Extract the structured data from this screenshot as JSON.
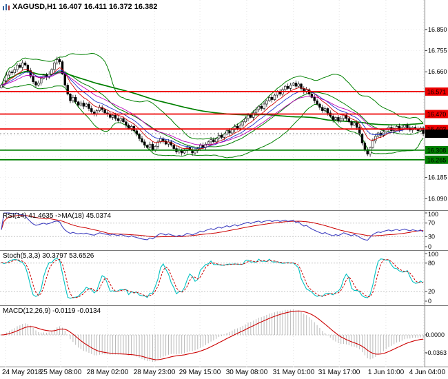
{
  "header": {
    "title": "XAGUSD,H1 16.407 16.411 16.372 16.382",
    "symbol": "XAGUSD",
    "timeframe": "H1",
    "open": 16.407,
    "high": 16.411,
    "low": 16.372,
    "close": 16.382
  },
  "chart_data": {
    "type": "candlestick",
    "title": "XAGUSD,H1",
    "x_labels": [
      {
        "text": "24 May 2018",
        "f": 0.013
      },
      {
        "text": "25 May 08:00",
        "f": 0.143
      },
      {
        "text": "28 May 02:00",
        "f": 0.253
      },
      {
        "text": "28 May 23:00",
        "f": 0.364
      },
      {
        "text": "29 May 15:00",
        "f": 0.471
      },
      {
        "text": "30 May 08:00",
        "f": 0.581
      },
      {
        "text": "31 May 01:00",
        "f": 0.691
      },
      {
        "text": "31 May 17:00",
        "f": 0.799
      },
      {
        "text": "1 Jun 10:00",
        "f": 0.909
      },
      {
        "text": "4 Jun 04:00",
        "f": 1.0
      }
    ],
    "y_axis": {
      "min": 16.06,
      "max": 16.97,
      "grid_values": [
        16.85,
        16.755,
        16.66,
        16.565,
        16.47,
        16.375,
        16.28,
        16.185,
        16.09
      ],
      "labels": [
        {
          "text": "16.850",
          "value": 16.85
        },
        {
          "text": "16.755",
          "value": 16.755
        },
        {
          "text": "16.660",
          "value": 16.66
        },
        {
          "text": "16.185",
          "value": 16.185
        },
        {
          "text": "16.090",
          "value": 16.09
        }
      ]
    },
    "closes": [
      16.6,
      16.62,
      16.645,
      16.66,
      16.655,
      16.67,
      16.69,
      16.68,
      16.7,
      16.69,
      16.665,
      16.64,
      16.615,
      16.6,
      16.61,
      16.63,
      16.645,
      16.635,
      16.65,
      16.67,
      16.7,
      16.715,
      16.705,
      16.65,
      16.6,
      16.56,
      16.53,
      16.545,
      16.525,
      16.51,
      16.52,
      16.505,
      16.515,
      16.495,
      16.48,
      16.47,
      16.485,
      16.5,
      16.49,
      16.475,
      16.47,
      16.455,
      16.465,
      16.45,
      16.44,
      16.45,
      16.435,
      16.42,
      16.405,
      16.415,
      16.395,
      16.38,
      16.36,
      16.345,
      16.33,
      16.32,
      16.335,
      16.31,
      16.325,
      16.345,
      16.36,
      16.35,
      16.335,
      16.345,
      16.33,
      16.315,
      16.3,
      16.31,
      16.295,
      16.305,
      16.32,
      16.31,
      16.295,
      16.305,
      16.315,
      16.33,
      16.32,
      16.335,
      16.345,
      16.355,
      16.345,
      16.36,
      16.375,
      16.365,
      16.38,
      16.395,
      16.385,
      16.4,
      16.415,
      16.405,
      16.42,
      16.435,
      16.45,
      16.465,
      16.455,
      16.475,
      16.49,
      16.505,
      16.495,
      16.515,
      16.53,
      16.545,
      16.535,
      16.555,
      16.57,
      16.56,
      16.58,
      16.595,
      16.585,
      16.6,
      16.61,
      16.595,
      16.605,
      16.585,
      16.57,
      16.58,
      16.56,
      16.545,
      16.53,
      16.515,
      16.5,
      16.485,
      16.495,
      16.475,
      16.46,
      16.445,
      16.455,
      16.44,
      16.45,
      16.465,
      16.45,
      16.435,
      16.42,
      16.43,
      16.41,
      16.38,
      16.34,
      16.31,
      16.29,
      16.32,
      16.35,
      16.37,
      16.385,
      16.375,
      16.39,
      16.4,
      16.41,
      16.395,
      16.405,
      16.415,
      16.4,
      16.41,
      16.42,
      16.408,
      16.398,
      16.41,
      16.402,
      16.395,
      16.407,
      16.382
    ],
    "levels": [
      {
        "label": "16.571",
        "value": 16.571,
        "color": "#EE0000"
      },
      {
        "label": "16.470",
        "value": 16.47,
        "color": "#EE0000"
      },
      {
        "label": "16.403",
        "value": 16.403,
        "color": "#EE0000"
      },
      {
        "label": "16.308",
        "value": 16.308,
        "color": "#008000"
      },
      {
        "label": "16.265",
        "value": 16.265,
        "color": "#008000"
      }
    ],
    "current_price": {
      "label": "16.382",
      "value": 16.382,
      "color": "#000000"
    },
    "overlays": {
      "bollinger": {
        "period": 20,
        "deviation": 2,
        "color": "#008000"
      },
      "slow_ma": {
        "period": 100,
        "color": "#008000"
      },
      "fast_mas": [
        {
          "period": 8,
          "color": "#CC0000"
        },
        {
          "period": 13,
          "color": "#2233CC"
        },
        {
          "period": 21,
          "color": "#BB00BB"
        }
      ]
    },
    "indicators": {
      "rsi": {
        "label": "RSI(14) 41.4635 ->MA(18) 45.0374",
        "period": 14,
        "ma_period": 18,
        "value": 41.4635,
        "ma_value": 45.0374,
        "axis_labels": [
          100,
          70,
          30,
          0
        ],
        "levels": [
          70,
          30
        ],
        "color": "#4040C0",
        "ma_color": "#CC0000"
      },
      "stoch": {
        "label": "Stoch(5,3,3) 30.3797 53.6526",
        "value": 30.3797,
        "signal": 53.6526,
        "axis_labels": [
          100,
          80,
          20,
          0
        ],
        "levels": [
          80,
          20
        ],
        "color": "#00C2C2",
        "signal_color": "#CC0000"
      },
      "macd": {
        "label": "MACD(12,26,9) -0.0119 -0.0134",
        "value": -0.0119,
        "signal_value": -0.0134,
        "axis_labels": [
          {
            "text": "0.0000",
            "value": 0
          },
          {
            "text": "-0.0363",
            "value": -0.0363
          }
        ],
        "hist_color": "#B8B8B8",
        "signal_color": "#CC0000"
      }
    }
  }
}
